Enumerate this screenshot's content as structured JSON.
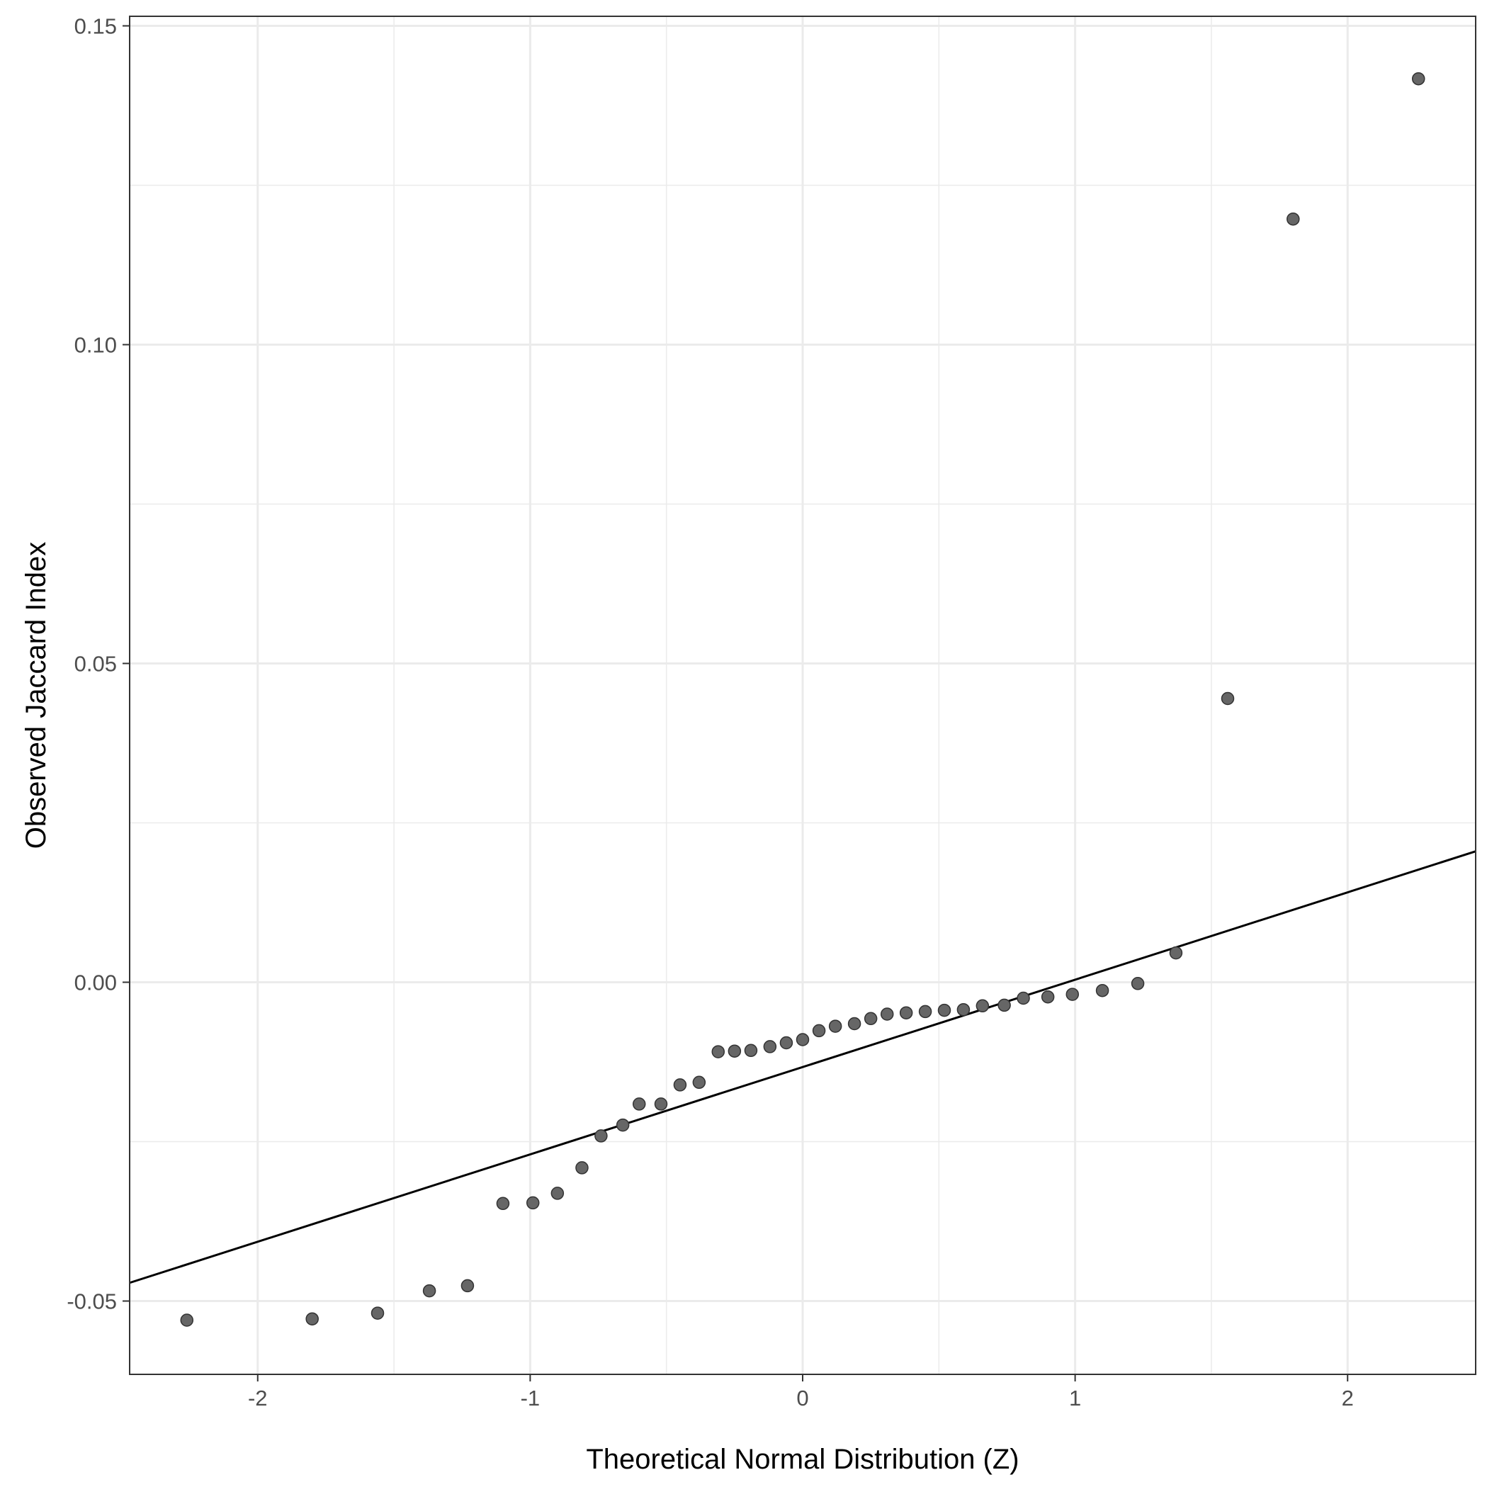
{
  "chart_data": {
    "type": "scatter",
    "title": "",
    "xlabel": "Theoretical Normal Distribution (Z)",
    "ylabel": "Observed Jaccard Index",
    "xlim": [
      -2.47,
      2.47
    ],
    "ylim": [
      -0.0615,
      0.1515
    ],
    "x_ticks": [
      -2,
      -1,
      0,
      1,
      2
    ],
    "x_tick_labels": [
      "-2",
      "-1",
      "0",
      "1",
      "2"
    ],
    "y_ticks": [
      -0.05,
      0.0,
      0.05,
      0.1,
      0.15
    ],
    "y_tick_labels": [
      "-0.05",
      "0.00",
      "0.05",
      "0.10",
      "0.15"
    ],
    "grid": true,
    "theme": "bw",
    "points": {
      "x": [
        -2.26,
        -1.8,
        -1.56,
        -1.37,
        -1.23,
        -1.1,
        -0.99,
        -0.9,
        -0.81,
        -0.74,
        -0.66,
        -0.6,
        -0.52,
        -0.45,
        -0.38,
        -0.31,
        -0.25,
        -0.19,
        -0.12,
        -0.06,
        0.0,
        0.06,
        0.12,
        0.19,
        0.25,
        0.31,
        0.38,
        0.45,
        0.52,
        0.59,
        0.66,
        0.74,
        0.81,
        0.9,
        0.99,
        1.1,
        1.23,
        1.37,
        1.56,
        1.8,
        2.26
      ],
      "y": [
        -0.053,
        -0.0528,
        -0.0519,
        -0.0484,
        -0.0476,
        -0.0347,
        -0.0346,
        -0.0331,
        -0.0291,
        -0.0241,
        -0.0224,
        -0.0191,
        -0.0191,
        -0.0161,
        -0.0157,
        -0.0109,
        -0.0108,
        -0.0107,
        -0.0101,
        -0.0095,
        -0.009,
        -0.0076,
        -0.0069,
        -0.0065,
        -0.0057,
        -0.005,
        -0.0048,
        -0.0046,
        -0.0044,
        -0.0043,
        -0.0037,
        -0.0036,
        -0.0025,
        -0.0023,
        -0.0019,
        -0.0013,
        -0.0002,
        0.0046,
        0.0445,
        0.1197,
        0.1417
      ]
    },
    "point_color": "#666666",
    "reference_line": {
      "intercept": -0.0133,
      "slope": 0.0137,
      "color": "#000000"
    }
  }
}
